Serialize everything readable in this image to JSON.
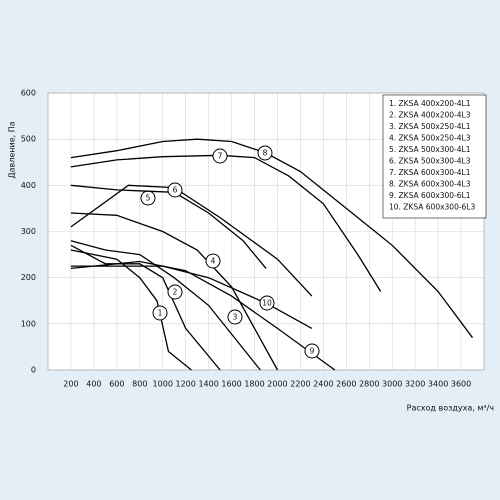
{
  "chart_data": {
    "type": "line",
    "y_label": "Давление, Па",
    "x_label": "Расход воздуха, м³/ч",
    "xlim": [
      0,
      3800
    ],
    "ylim": [
      0,
      600
    ],
    "xticks": [
      200,
      400,
      600,
      800,
      1000,
      1200,
      1400,
      1600,
      1800,
      2000,
      2200,
      2400,
      2600,
      2800,
      3000,
      3200,
      3400,
      3600
    ],
    "yticks": [
      0,
      100,
      200,
      300,
      400,
      500,
      600
    ],
    "grid": true,
    "legend": "upper right",
    "series": [
      {
        "name": "1. ZKSA 400x200-4L1",
        "label": "1",
        "color": "#000000",
        "x": [
          200,
          600,
          800,
          950,
          1050,
          1250
        ],
        "values": [
          260,
          240,
          200,
          150,
          40,
          0
        ]
      },
      {
        "name": "2. ZKSA 400x200-4L3",
        "label": "2",
        "color": "#000000",
        "x": [
          200,
          500,
          800,
          1000,
          1200,
          1500
        ],
        "values": [
          270,
          230,
          230,
          200,
          90,
          0
        ]
      },
      {
        "name": "3. ZKSA 500x250-4L1",
        "label": "3",
        "color": "#000000",
        "x": [
          200,
          500,
          800,
          1100,
          1400,
          1850
        ],
        "values": [
          280,
          260,
          250,
          200,
          140,
          0
        ]
      },
      {
        "name": "4. ZKSA 500x250-4L3",
        "label": "4",
        "color": "#000000",
        "x": [
          200,
          600,
          1000,
          1300,
          1600,
          2000
        ],
        "values": [
          340,
          335,
          300,
          260,
          180,
          0
        ]
      },
      {
        "name": "5. ZKSA 500x300-4L1",
        "label": "5",
        "color": "#000000",
        "x": [
          200,
          700,
          1100,
          1500,
          2000,
          2300
        ],
        "values": [
          310,
          400,
          395,
          330,
          240,
          160
        ]
      },
      {
        "name": "6. ZKSA 500x300-4L3",
        "label": "6",
        "color": "#000000",
        "x": [
          200,
          600,
          1100,
          1400,
          1700,
          1900
        ],
        "values": [
          400,
          390,
          385,
          340,
          280,
          220
        ]
      },
      {
        "name": "7. ZKSA 600x300-4L1",
        "label": "7",
        "color": "#000000",
        "x": [
          200,
          600,
          1000,
          1500,
          1800,
          2100,
          2400,
          2700,
          2900
        ],
        "values": [
          440,
          455,
          462,
          465,
          460,
          420,
          360,
          250,
          170
        ]
      },
      {
        "name": "8. ZKSA 600x300-4L3",
        "label": "8",
        "color": "#000000",
        "x": [
          200,
          600,
          1000,
          1300,
          1600,
          1900,
          2200,
          2600,
          3000,
          3400,
          3700
        ],
        "values": [
          460,
          475,
          495,
          500,
          495,
          470,
          430,
          350,
          270,
          170,
          70
        ]
      },
      {
        "name": "9. ZKSA 600x300-6L1",
        "label": "9",
        "color": "#000000",
        "x": [
          200,
          800,
          1200,
          1600,
          2000,
          2500
        ],
        "values": [
          220,
          235,
          215,
          160,
          90,
          0
        ]
      },
      {
        "name": "10. ZKSA 600x300-6L3",
        "label": "10",
        "color": "#000000",
        "x": [
          200,
          1000,
          1400,
          1900,
          2300
        ],
        "values": [
          225,
          225,
          200,
          145,
          90
        ]
      }
    ]
  }
}
